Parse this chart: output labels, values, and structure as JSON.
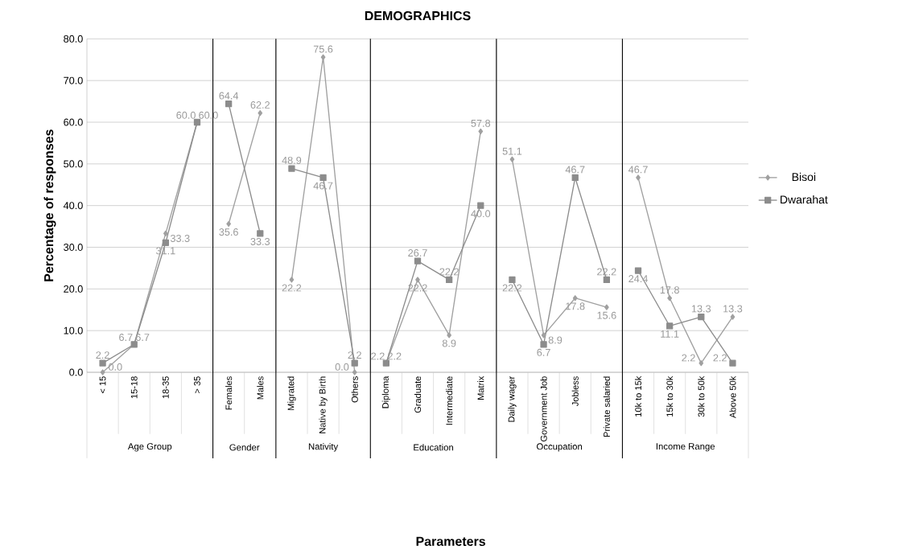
{
  "chart_data": [
    {
      "type": "line",
      "ylabel": "Percentage  of responses",
      "xlabel": "Age Group",
      "annotations": [
        "Parameters"
      ],
      "categories": [
        "< 15",
        "15-18",
        "18-35",
        "> 35"
      ],
      "series": [
        {
          "color": "#a0a0a0",
          "marker": "diamond",
          "values": [
            0.0,
            6.7,
            33.3,
            60.0
          ],
          "value_labels": [
            "0.0",
            "6.7",
            "33.3",
            "60.0"
          ]
        },
        {
          "color": "#8c8c8c",
          "marker": "square",
          "values": [
            2.2,
            6.7,
            31.1,
            60.0
          ],
          "value_labels": [
            "2.2",
            "6.7",
            "31.1",
            "60.0"
          ]
        }
      ],
      "ylim": [
        0,
        80
      ],
      "yticks": [
        {
          "value": 0,
          "label": "0.0"
        },
        {
          "value": 10,
          "label": "10.0"
        },
        {
          "value": 20,
          "label": "20.0"
        },
        {
          "value": 30,
          "label": "30.0"
        },
        {
          "value": 40,
          "label": "40.0"
        },
        {
          "value": 50,
          "label": "50.0"
        },
        {
          "value": 60,
          "label": "60.0"
        },
        {
          "value": 70,
          "label": "70.0"
        },
        {
          "value": 80,
          "label": "80.0"
        }
      ],
      "grid": "y"
    },
    {
      "type": "line",
      "xlabel": "Gender",
      "categories": [
        "Females",
        "Males"
      ],
      "series": [
        {
          "color": "#a0a0a0",
          "marker": "diamond",
          "values": [
            35.6,
            62.2
          ],
          "value_labels": [
            "35.6",
            "62.2"
          ]
        },
        {
          "color": "#8c8c8c",
          "marker": "square",
          "values": [
            64.4,
            33.3
          ],
          "value_labels": [
            "64.4",
            "33.3"
          ]
        }
      ],
      "ylim": [
        0,
        80
      ],
      "yticks": [
        0,
        10,
        20,
        30,
        40,
        50,
        60,
        70,
        80
      ],
      "tick_labels": "x",
      "grid": "y"
    },
    {
      "type": "line",
      "xlabel": "Nativity",
      "categories": [
        "Migrated",
        "Native by Birth",
        "Others"
      ],
      "series": [
        {
          "color": "#a0a0a0",
          "marker": "diamond",
          "values": [
            22.2,
            75.6,
            0.0
          ],
          "value_labels": [
            "22.2",
            "75.6",
            "0.0"
          ]
        },
        {
          "color": "#8c8c8c",
          "marker": "square",
          "values": [
            48.9,
            46.7,
            2.2
          ],
          "value_labels": [
            "48.9",
            "46.7",
            "2.2"
          ]
        }
      ],
      "ylim": [
        0,
        80
      ],
      "yticks": [
        0,
        10,
        20,
        30,
        40,
        50,
        60,
        70,
        80
      ],
      "tick_labels": "x",
      "grid": "y"
    },
    {
      "type": "line",
      "title": "DEMOGRAPHICS",
      "xlabel": "Education",
      "categories": [
        "Diploma",
        "Graduate",
        "Intermediate",
        "Matrix"
      ],
      "series": [
        {
          "color": "#a0a0a0",
          "marker": "diamond",
          "values": [
            2.2,
            22.2,
            8.9,
            57.8
          ],
          "value_labels": [
            "2.2",
            "22.2",
            "8.9",
            "57.8"
          ]
        },
        {
          "color": "#8c8c8c",
          "marker": "square",
          "values": [
            2.2,
            26.7,
            22.2,
            40.0
          ],
          "value_labels": [
            "2.2",
            "26.7",
            "22.2",
            "40.0"
          ]
        }
      ],
      "ylim": [
        0,
        80
      ],
      "yticks": [
        0,
        10,
        20,
        30,
        40,
        50,
        60,
        70,
        80
      ],
      "tick_labels": "x",
      "grid": "y"
    },
    {
      "type": "line",
      "xlabel": "Occupation",
      "categories": [
        "Daily wager",
        "Government Job",
        "Jobless",
        "Private salaried"
      ],
      "series": [
        {
          "color": "#a0a0a0",
          "marker": "diamond",
          "values": [
            51.1,
            8.9,
            17.8,
            15.6
          ],
          "value_labels": [
            "51.1",
            "8.9",
            "17.8",
            "15.6"
          ]
        },
        {
          "color": "#8c8c8c",
          "marker": "square",
          "values": [
            22.2,
            6.7,
            46.7,
            22.2
          ],
          "value_labels": [
            "22.2",
            "6.7",
            "46.7",
            "22.2"
          ]
        }
      ],
      "ylim": [
        0,
        80
      ],
      "yticks": [
        0,
        10,
        20,
        30,
        40,
        50,
        60,
        70,
        80
      ],
      "tick_labels": "x",
      "grid": "y"
    },
    {
      "type": "line",
      "xlabel": "Income Range",
      "categories": [
        "10k to 15k",
        "15k to 30k",
        "30k to 50k",
        "Above 50k"
      ],
      "series": [
        {
          "name": "Bisoi",
          "color": "#a0a0a0",
          "marker": "diamond",
          "values": [
            46.7,
            17.8,
            2.2,
            13.3
          ],
          "value_labels": [
            "46.7",
            "17.8",
            "2.2",
            "13.3"
          ]
        },
        {
          "name": "Dwarahat",
          "color": "#8c8c8c",
          "marker": "square",
          "values": [
            24.4,
            11.1,
            13.3,
            2.2
          ],
          "value_labels": [
            "24.4",
            "11.1",
            "13.3",
            "2.2"
          ]
        }
      ],
      "ylim": [
        0,
        80
      ],
      "yticks": [
        0,
        10,
        20,
        30,
        40,
        50,
        60,
        70,
        80
      ],
      "tick_labels": "x",
      "grid": "y",
      "legend": "right"
    }
  ]
}
